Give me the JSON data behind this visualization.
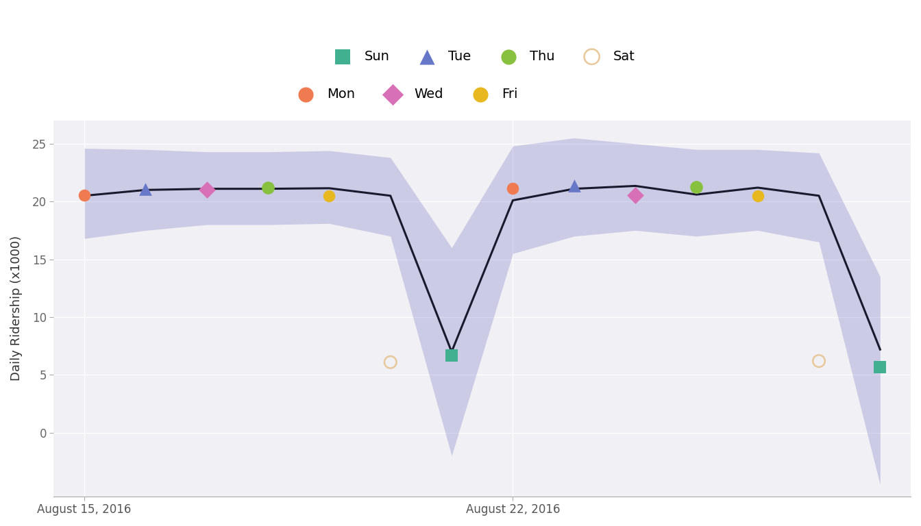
{
  "ylabel": "Daily Ridership (x1000)",
  "background_color": "#ffffff",
  "plot_bg_color": "#f0f0f5",
  "grid_color": "#ffffff",
  "band_color": "#8888cc",
  "band_alpha": 0.35,
  "line_color": "#1a1a2e",
  "line_width": 2.2,
  "ylim": [
    -5.5,
    27
  ],
  "yticks": [
    0,
    5,
    10,
    15,
    20,
    25
  ],
  "xtick_labels": [
    "August 15, 2016",
    "August 22, 2016"
  ],
  "days": [
    0,
    1,
    2,
    3,
    4,
    5,
    6,
    7,
    8,
    9,
    10,
    11,
    12,
    13
  ],
  "pred_line": [
    20.5,
    21.0,
    21.1,
    21.1,
    21.15,
    20.5,
    7.0,
    20.1,
    21.1,
    21.35,
    20.6,
    21.2,
    20.5,
    7.2
  ],
  "pred_upper": [
    24.6,
    24.5,
    24.3,
    24.3,
    24.4,
    23.8,
    16.0,
    24.8,
    25.5,
    25.0,
    24.5,
    24.5,
    24.2,
    13.5
  ],
  "pred_lower": [
    16.8,
    17.5,
    18.0,
    18.0,
    18.1,
    17.0,
    -2.0,
    15.5,
    17.0,
    17.5,
    17.0,
    17.5,
    16.5,
    -4.5
  ],
  "actual_points": [
    {
      "day": 0,
      "value": 20.55,
      "day_name": "Mon",
      "color": "#f07b50",
      "marker": "o",
      "size": 160
    },
    {
      "day": 1,
      "value": 21.1,
      "day_name": "Tue",
      "color": "#6878c8",
      "marker": "^",
      "size": 180
    },
    {
      "day": 2,
      "value": 21.0,
      "day_name": "Wed",
      "color": "#d870b8",
      "marker": "D",
      "size": 160
    },
    {
      "day": 3,
      "value": 21.2,
      "day_name": "Thu",
      "color": "#88c040",
      "marker": "o",
      "size": 180
    },
    {
      "day": 4,
      "value": 20.5,
      "day_name": "Fri",
      "color": "#e8b820",
      "marker": "o",
      "size": 160
    },
    {
      "day": 5,
      "value": 6.1,
      "day_name": "Sat",
      "color": "#e8c89a",
      "marker": "o",
      "size": 160
    },
    {
      "day": 6,
      "value": 6.7,
      "day_name": "Sun",
      "color": "#40b090",
      "marker": "s",
      "size": 160
    },
    {
      "day": 7,
      "value": 21.15,
      "day_name": "Mon",
      "color": "#f07b50",
      "marker": "o",
      "size": 160
    },
    {
      "day": 8,
      "value": 21.4,
      "day_name": "Tue",
      "color": "#6878c8",
      "marker": "^",
      "size": 180
    },
    {
      "day": 9,
      "value": 20.55,
      "day_name": "Wed",
      "color": "#d870b8",
      "marker": "D",
      "size": 160
    },
    {
      "day": 10,
      "value": 21.25,
      "day_name": "Thu",
      "color": "#88c040",
      "marker": "o",
      "size": 180
    },
    {
      "day": 11,
      "value": 20.5,
      "day_name": "Fri",
      "color": "#e8b820",
      "marker": "o",
      "size": 160
    },
    {
      "day": 12,
      "value": 6.2,
      "day_name": "Sat",
      "color": "#e8c89a",
      "marker": "o",
      "size": 160
    },
    {
      "day": 13,
      "value": 5.65,
      "day_name": "Sun",
      "color": "#40b090",
      "marker": "s",
      "size": 160
    }
  ],
  "legend_row1": [
    {
      "label": "Sun",
      "color": "#40b090",
      "marker": "s",
      "filled": true
    },
    {
      "label": "Tue",
      "color": "#6878c8",
      "marker": "^",
      "filled": true
    },
    {
      "label": "Thu",
      "color": "#88c040",
      "marker": "o",
      "filled": true
    },
    {
      "label": "Sat",
      "color": "#e8c89a",
      "marker": "o",
      "filled": false
    }
  ],
  "legend_row2": [
    {
      "label": "Mon",
      "color": "#f07b50",
      "marker": "o",
      "filled": true
    },
    {
      "label": "Wed",
      "color": "#d870b8",
      "marker": "D",
      "filled": true
    },
    {
      "label": "Fri",
      "color": "#e8b820",
      "marker": "o",
      "filled": true
    }
  ],
  "xtick_positions": [
    0,
    7
  ]
}
